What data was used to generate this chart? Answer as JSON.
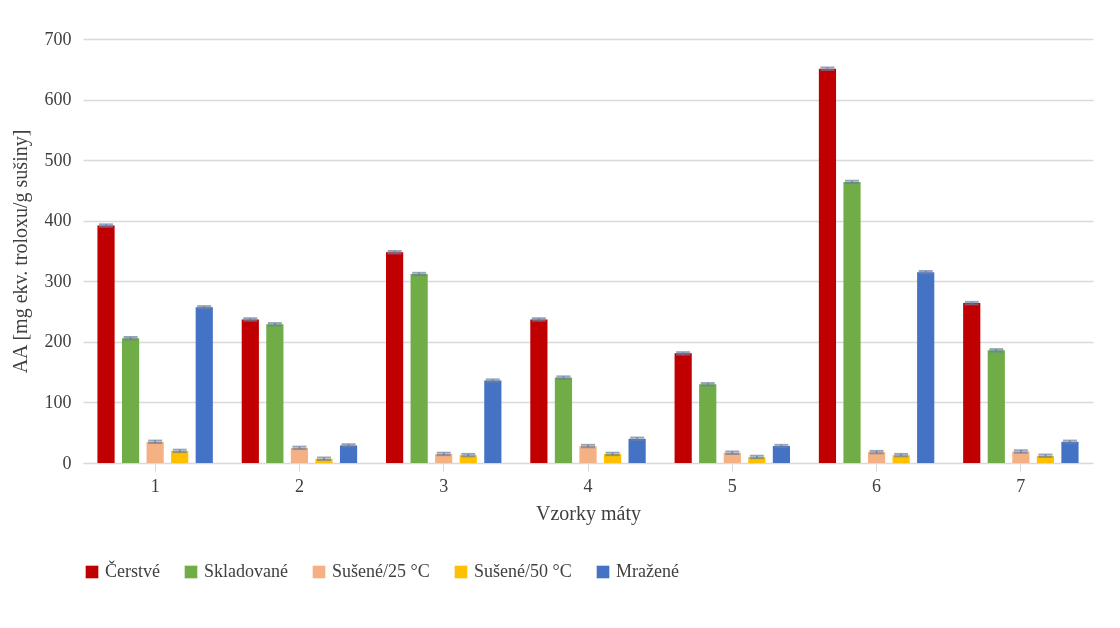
{
  "chart_data": {
    "type": "bar",
    "xlabel": "Vzorky máty",
    "ylabel": "AA [mg ekv. troloxu/g sušiny]",
    "categories": [
      "1",
      "2",
      "3",
      "4",
      "5",
      "6",
      "7"
    ],
    "series": [
      {
        "name": "Čerstvé",
        "color": "#c00000",
        "values": [
          392,
          237,
          348,
          237,
          181,
          651,
          264
        ],
        "errors": [
          2,
          2,
          2,
          2,
          2,
          2,
          2
        ]
      },
      {
        "name": "Skladované",
        "color": "#70ad47",
        "values": [
          206,
          229,
          312,
          141,
          130,
          464,
          186
        ],
        "errors": [
          2,
          2,
          2,
          2,
          2,
          2,
          2
        ]
      },
      {
        "name": "Sušené/25 °C",
        "color": "#f4b183",
        "values": [
          35,
          25,
          15,
          28,
          17,
          18,
          19
        ],
        "errors": [
          2,
          2,
          2,
          2,
          2,
          2,
          2
        ]
      },
      {
        "name": "Sušené/50 °C",
        "color": "#ffc000",
        "values": [
          20,
          7,
          13,
          15,
          10,
          13,
          12
        ],
        "errors": [
          2,
          2,
          2,
          2,
          2,
          2,
          2
        ]
      },
      {
        "name": "Mražené",
        "color": "#4472c4",
        "values": [
          257,
          29,
          136,
          40,
          28,
          315,
          35
        ],
        "errors": [
          2,
          2,
          2,
          2,
          2,
          2,
          2
        ]
      }
    ],
    "ylim": [
      0,
      700
    ],
    "yticks": [
      0,
      100,
      200,
      300,
      400,
      500,
      600,
      700
    ],
    "grid": "y",
    "legend": "bottom"
  }
}
